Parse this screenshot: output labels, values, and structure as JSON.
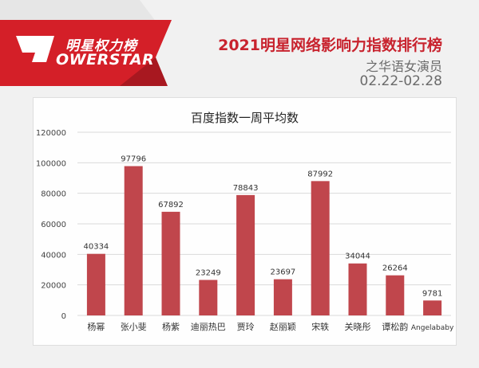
{
  "header": {
    "logo_line1": "明星权力榜",
    "logo_line2": "OWERSTAR",
    "title": "2021明星网络影响力指数排行榜",
    "subtitle": "之华语女演员",
    "date_range": "02.22-02.28"
  },
  "colors": {
    "bar": "#c0464c",
    "brand_red": "#c8232e",
    "grid": "#d9d9d9"
  },
  "chart_data": {
    "type": "bar",
    "title": "百度指数一周平均数",
    "categories": [
      "杨幂",
      "张小斐",
      "杨紫",
      "迪丽热巴",
      "贾玲",
      "赵丽颖",
      "宋轶",
      "关晓彤",
      "谭松韵",
      "Angelababy"
    ],
    "values": [
      40334,
      97796,
      67892,
      23249,
      78843,
      23697,
      87992,
      34044,
      26264,
      9781
    ],
    "ylim": [
      0,
      120000
    ],
    "yticks": [
      0,
      20000,
      40000,
      60000,
      80000,
      100000,
      120000
    ],
    "grid": true,
    "data_labels": true
  }
}
